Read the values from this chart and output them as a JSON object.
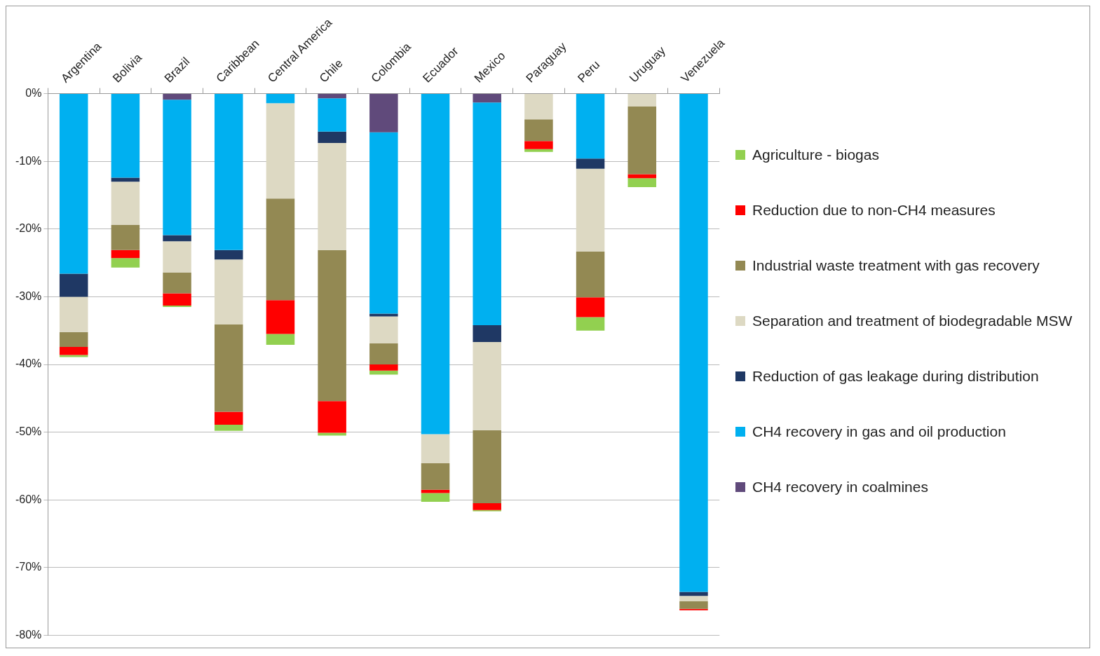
{
  "chart_data": {
    "type": "bar",
    "stacked": true,
    "categories": [
      "Argentina",
      "Bolivia",
      "Brazil",
      "Caribbean",
      "Central America",
      "Chile",
      "Colombia",
      "Ecuador",
      "Mexico",
      "Paraguay",
      "Peru",
      "Uruguay",
      "Venezuela"
    ],
    "series": [
      {
        "name": "CH4 recovery in coalmines",
        "color": "#604a7b",
        "values": [
          0,
          0,
          -0.9,
          0,
          0,
          -0.7,
          -5.7,
          0,
          -1.3,
          0,
          0,
          0,
          0
        ]
      },
      {
        "name": "CH4 recovery in gas and oil production",
        "color": "#00b0f0",
        "values": [
          -26.6,
          -12.4,
          -20.0,
          -23.1,
          -1.4,
          -4.9,
          -26.8,
          -50.3,
          -32.9,
          0,
          -9.6,
          0,
          -73.6
        ]
      },
      {
        "name": "Reduction of gas leakage during distribution",
        "color": "#1f3864",
        "values": [
          -3.4,
          -0.6,
          -0.9,
          -1.4,
          0,
          -1.7,
          -0.4,
          0,
          -2.5,
          0,
          -1.5,
          0,
          -0.6
        ]
      },
      {
        "name": "Separation and treatment of biodegradable MSW",
        "color": "#ddd9c3",
        "values": [
          -5.2,
          -6.4,
          -4.6,
          -9.6,
          -14.1,
          -15.8,
          -4.0,
          -4.3,
          -13.0,
          -3.8,
          -12.2,
          -1.9,
          -0.8
        ]
      },
      {
        "name": "Industrial waste treatment with gas recovery",
        "color": "#938953",
        "values": [
          -2.2,
          -3.7,
          -3.1,
          -12.9,
          -15.0,
          -22.3,
          -3.1,
          -3.9,
          -10.8,
          -3.2,
          -6.8,
          -10.0,
          -1.1
        ]
      },
      {
        "name": "Reduction due to non-CH4 measures",
        "color": "#ff0000",
        "values": [
          -1.2,
          -1.2,
          -1.8,
          -1.9,
          -5.0,
          -4.7,
          -0.9,
          -0.5,
          -1.0,
          -1.2,
          -2.9,
          -0.6,
          -0.2
        ]
      },
      {
        "name": "Agriculture - biogas",
        "color": "#92d050",
        "values": [
          -0.3,
          -1.4,
          -0.2,
          -0.9,
          -1.6,
          -0.4,
          -0.6,
          -1.3,
          -0.2,
          -0.4,
          -2.0,
          -1.3,
          0
        ]
      }
    ],
    "ylim": [
      -80,
      0
    ],
    "yticks": [
      {
        "value": -80,
        "label": "-80%"
      },
      {
        "value": -70,
        "label": "-70%"
      },
      {
        "value": -60,
        "label": "-60%"
      },
      {
        "value": -50,
        "label": "-50%"
      },
      {
        "value": -40,
        "label": "-40%"
      },
      {
        "value": -30,
        "label": "-30%"
      },
      {
        "value": -20,
        "label": "-20%"
      },
      {
        "value": -10,
        "label": "-10%"
      },
      {
        "value": 0,
        "label": "0%"
      }
    ],
    "grid": "y",
    "legend": "right"
  }
}
